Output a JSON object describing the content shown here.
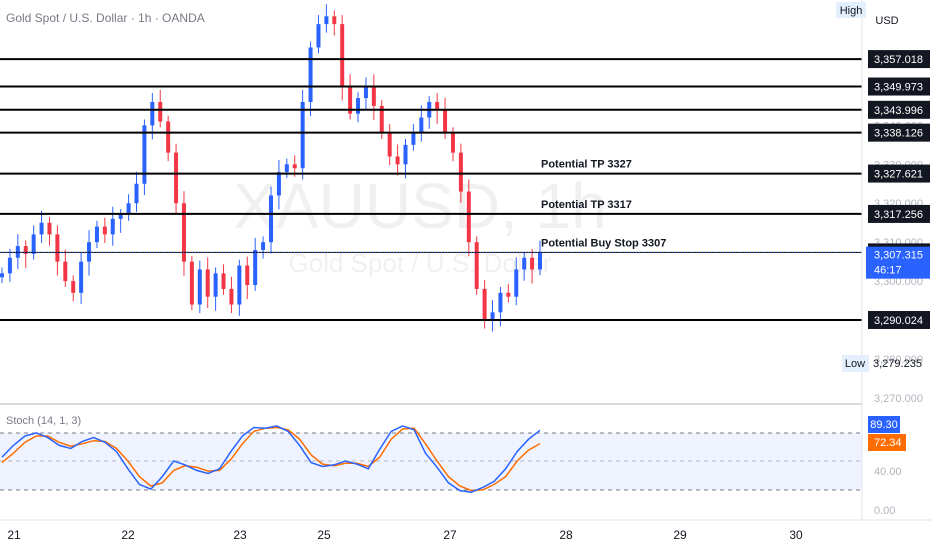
{
  "header": {
    "title": "Gold Spot / U.S. Dollar · 1h · OANDA"
  },
  "watermark": {
    "symbol": "XAUUSD, 1h",
    "name": "Gold Spot / U.S. Dollar"
  },
  "price_axis": {
    "currency": "USD",
    "high_label": "High",
    "low_label": "Low",
    "ticks": [
      "3,350.000",
      "3,340.000",
      "3,330.000",
      "3,320.000",
      "3,310.000",
      "3,300.000",
      "3,290.000",
      "3,280.000",
      "3,270.000"
    ]
  },
  "levels": [
    {
      "price": 3357.018,
      "label": "3,357.018",
      "annotation": ""
    },
    {
      "price": 3349.973,
      "label": "3,349.973",
      "annotation": ""
    },
    {
      "price": 3343.996,
      "label": "3,343.996",
      "annotation": ""
    },
    {
      "price": 3338.126,
      "label": "3,338.126",
      "annotation": ""
    },
    {
      "price": 3327.621,
      "label": "3,327.621",
      "annotation": "Potential TP 3327"
    },
    {
      "price": 3317.256,
      "label": "3,317.256",
      "annotation": "Potential TP 3317"
    },
    {
      "price": 3307.383,
      "label": "3,307.383",
      "annotation": "Potential Buy Stop 3307"
    },
    {
      "price": 3290.024,
      "label": "3,290.024",
      "annotation": ""
    }
  ],
  "current_price": {
    "value": 3307.315,
    "label": "3,307.315",
    "countdown": "46:17",
    "color": "#2962ff"
  },
  "low_value": {
    "value": 3279.235,
    "label": "3,279.235"
  },
  "stoch": {
    "title": "Stoch (14, 1, 3)",
    "k_label": "89.30",
    "d_label": "72.34",
    "k_color": "#2962ff",
    "d_color": "#ff6d00",
    "ticks": [
      "40.00",
      "0.00"
    ]
  },
  "x_axis": {
    "labels": [
      "21",
      "22",
      "23",
      "24",
      "25",
      "26",
      "27",
      "28",
      "29",
      "30"
    ]
  },
  "colors": {
    "up": "#2962ff",
    "down": "#f23645",
    "level": "#000000"
  },
  "chart_data": {
    "type": "candlestick",
    "title": "Gold Spot / U.S. Dollar · 1h · OANDA",
    "symbol": "XAUUSD",
    "timeframe": "1h",
    "x_labels": [
      "21",
      "22",
      "23",
      "24",
      "25",
      "26",
      "27",
      "28",
      "29",
      "30"
    ],
    "y_range": [
      3270,
      3372
    ],
    "close_path": [
      3302,
      3306,
      3309,
      3307,
      3312,
      3315,
      3312,
      3305,
      3300,
      3297,
      3305,
      3310,
      3314,
      3312,
      3316,
      3317,
      3320,
      3325,
      3340,
      3346,
      3341,
      3333,
      3320,
      3305,
      3294,
      3303,
      3296,
      3302,
      3298,
      3294,
      3304,
      3299,
      3308,
      3310,
      3322,
      3328,
      3330,
      3329,
      3346,
      3360,
      3366,
      3368,
      3366,
      3350,
      3343,
      3347,
      3350,
      3345,
      3338,
      3332,
      3330,
      3335,
      3338,
      3342,
      3346,
      3344,
      3338,
      3333,
      3323,
      3310,
      3298,
      3290,
      3292,
      3297,
      3296,
      3303,
      3306,
      3303,
      3307.3
    ],
    "high": 3368,
    "low": 3279.235,
    "last": 3307.315,
    "levels": [
      3357.018,
      3349.973,
      3343.996,
      3338.126,
      3327.621,
      3317.256,
      3307.383,
      3290.024
    ],
    "annotations": [
      "Potential TP 3327",
      "Potential TP 3317",
      "Potential Buy Stop 3307"
    ],
    "indicator": {
      "name": "Stoch (14, 1, 3)",
      "k_last": 89.3,
      "d_last": 72.34,
      "bands": [
        80,
        50,
        20
      ],
      "k_path": [
        55,
        70,
        82,
        86,
        80,
        70,
        66,
        75,
        80,
        74,
        62,
        40,
        20,
        14,
        30,
        50,
        45,
        38,
        34,
        40,
        62,
        82,
        93,
        92,
        95,
        88,
        70,
        48,
        43,
        45,
        50,
        46,
        40,
        65,
        88,
        95,
        90,
        60,
        42,
        22,
        12,
        10,
        16,
        24,
        40,
        62,
        78,
        89.3
      ],
      "d_path": [
        48,
        60,
        74,
        82,
        82,
        74,
        69,
        72,
        76,
        75,
        66,
        50,
        30,
        18,
        22,
        38,
        44,
        42,
        37,
        38,
        52,
        72,
        88,
        92,
        93,
        90,
        78,
        58,
        46,
        44,
        47,
        47,
        43,
        55,
        78,
        91,
        92,
        72,
        50,
        30,
        18,
        12,
        13,
        20,
        30,
        50,
        64,
        72.34
      ]
    }
  }
}
